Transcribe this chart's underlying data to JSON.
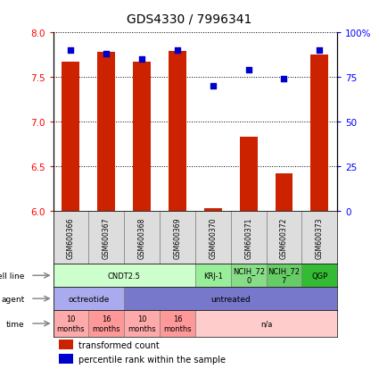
{
  "title": "GDS4330 / 7996341",
  "samples": [
    "GSM600366",
    "GSM600367",
    "GSM600368",
    "GSM600369",
    "GSM600370",
    "GSM600371",
    "GSM600372",
    "GSM600373"
  ],
  "bar_values": [
    7.67,
    7.78,
    7.67,
    7.79,
    6.03,
    6.83,
    6.42,
    7.75
  ],
  "percentile_values": [
    90,
    88,
    85,
    90,
    70,
    79,
    74,
    90
  ],
  "ylim": [
    6.0,
    8.0
  ],
  "y2lim": [
    0,
    100
  ],
  "yticks": [
    6.0,
    6.5,
    7.0,
    7.5,
    8.0
  ],
  "y2ticks": [
    0,
    25,
    50,
    75,
    100
  ],
  "y2ticklabels": [
    "0",
    "25",
    "50",
    "75",
    "100%"
  ],
  "bar_color": "#cc2200",
  "percentile_color": "#0000cc",
  "cell_line_data": [
    {
      "label": "CNDT2.5",
      "start": 0,
      "end": 4,
      "color": "#ccffcc"
    },
    {
      "label": "KRJ-1",
      "start": 4,
      "end": 5,
      "color": "#99ee99"
    },
    {
      "label": "NCIH_72\n0",
      "start": 5,
      "end": 6,
      "color": "#88dd88"
    },
    {
      "label": "NCIH_72\n7",
      "start": 6,
      "end": 7,
      "color": "#66cc66"
    },
    {
      "label": "QGP",
      "start": 7,
      "end": 8,
      "color": "#33bb33"
    }
  ],
  "agent_data": [
    {
      "label": "octreotide",
      "start": 0,
      "end": 2,
      "color": "#aaaaee"
    },
    {
      "label": "untreated",
      "start": 2,
      "end": 8,
      "color": "#7777cc"
    }
  ],
  "time_data": [
    {
      "label": "10\nmonths",
      "start": 0,
      "end": 1,
      "color": "#ffaaaa"
    },
    {
      "label": "16\nmonths",
      "start": 1,
      "end": 2,
      "color": "#ff9999"
    },
    {
      "label": "10\nmonths",
      "start": 2,
      "end": 3,
      "color": "#ffaaaa"
    },
    {
      "label": "16\nmonths",
      "start": 3,
      "end": 4,
      "color": "#ff9999"
    },
    {
      "label": "n/a",
      "start": 4,
      "end": 8,
      "color": "#ffcccc"
    }
  ],
  "row_labels": [
    "cell line",
    "agent",
    "time"
  ],
  "legend_bar_label": "transformed count",
  "legend_pct_label": "percentile rank within the sample",
  "bar_width": 0.5
}
